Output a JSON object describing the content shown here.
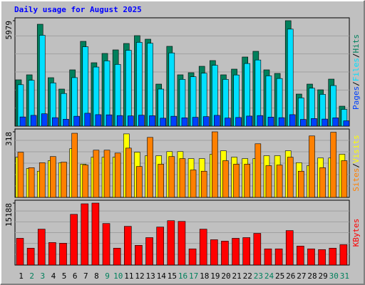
{
  "separator": "/",
  "chart_data": [
    {
      "type": "bar",
      "title": "Daily usage for August 2025",
      "ylim": [
        0,
        5979
      ],
      "yticks": [
        5979
      ],
      "series": [
        {
          "name": "Hits",
          "color": "#00805C",
          "values": [
            2626,
            2909,
            5777,
            2747,
            2101,
            3191,
            4807,
            3595,
            4121,
            4323,
            4686,
            5131,
            4929,
            2383,
            4525,
            2909,
            3030,
            3393,
            3717,
            2909,
            3232,
            3919,
            4242,
            3191,
            2989,
            5979,
            1818,
            2383,
            2060,
            2666,
            1131
          ]
        },
        {
          "name": "Files",
          "color": "#00E0FF",
          "values": [
            2350,
            2600,
            5150,
            2450,
            1850,
            2750,
            4500,
            3350,
            3700,
            3500,
            4300,
            4750,
            4700,
            2100,
            4150,
            2650,
            2800,
            3000,
            3450,
            2650,
            2900,
            3550,
            3750,
            2850,
            2700,
            5500,
            1600,
            2150,
            1800,
            2300,
            950
          ]
        },
        {
          "name": "Pages",
          "color": "#0040FF",
          "values": [
            520,
            610,
            700,
            480,
            390,
            560,
            730,
            650,
            640,
            600,
            580,
            620,
            590,
            450,
            560,
            470,
            500,
            540,
            610,
            460,
            490,
            570,
            600,
            510,
            480,
            650,
            380,
            430,
            400,
            470,
            300
          ]
        }
      ]
    },
    {
      "type": "bar",
      "ylim": [
        0,
        318
      ],
      "yticks": [
        318
      ],
      "series": [
        {
          "name": "Visits",
          "color": "#FFFF00",
          "values": [
            195,
            140,
            127,
            178,
            168,
            236,
            161,
            195,
            195,
            195,
            308,
            219,
            202,
            202,
            222,
            222,
            188,
            188,
            209,
            226,
            195,
            188,
            188,
            202,
            202,
            226,
            168,
            154,
            191,
            191,
            209
          ]
        },
        {
          "name": "Sites",
          "color": "#FF8000",
          "values": [
            219,
            144,
            168,
            198,
            171,
            311,
            157,
            229,
            229,
            215,
            239,
            150,
            291,
            161,
            198,
            188,
            133,
            127,
            318,
            178,
            161,
            161,
            260,
            154,
            157,
            195,
            127,
            298,
            144,
            316,
            178
          ]
        }
      ]
    },
    {
      "type": "bar",
      "ylim": [
        0,
        15188
      ],
      "yticks": [
        15188
      ],
      "categories": [
        "1",
        "2",
        "3",
        "4",
        "5",
        "6",
        "7",
        "8",
        "9",
        "10",
        "11",
        "12",
        "13",
        "14",
        "15",
        "16",
        "17",
        "18",
        "19",
        "20",
        "21",
        "22",
        "23",
        "24",
        "25",
        "26",
        "27",
        "28",
        "29",
        "30",
        "31"
      ],
      "category_colors": [
        "#000000",
        "#00805C",
        "#00805C",
        "#000000",
        "#000000",
        "#000000",
        "#000000",
        "#000000",
        "#00805C",
        "#00805C",
        "#000000",
        "#000000",
        "#000000",
        "#000000",
        "#000000",
        "#00805C",
        "#00805C",
        "#000000",
        "#000000",
        "#000000",
        "#000000",
        "#000000",
        "#00805C",
        "#00805C",
        "#000000",
        "#000000",
        "#000000",
        "#000000",
        "#000000",
        "#00805C",
        "#00805C"
      ],
      "series": [
        {
          "name": "KBytes",
          "color": "#FF0000",
          "values": [
            6559,
            4142,
            8802,
            5523,
            5350,
            12427,
            15016,
            15188,
            10183,
            4142,
            9493,
            4833,
            6731,
            9320,
            10874,
            10701,
            3970,
            8802,
            6213,
            5868,
            6559,
            6731,
            7767,
            3970,
            3970,
            8457,
            4660,
            3970,
            3797,
            4142,
            5005
          ]
        }
      ]
    }
  ]
}
